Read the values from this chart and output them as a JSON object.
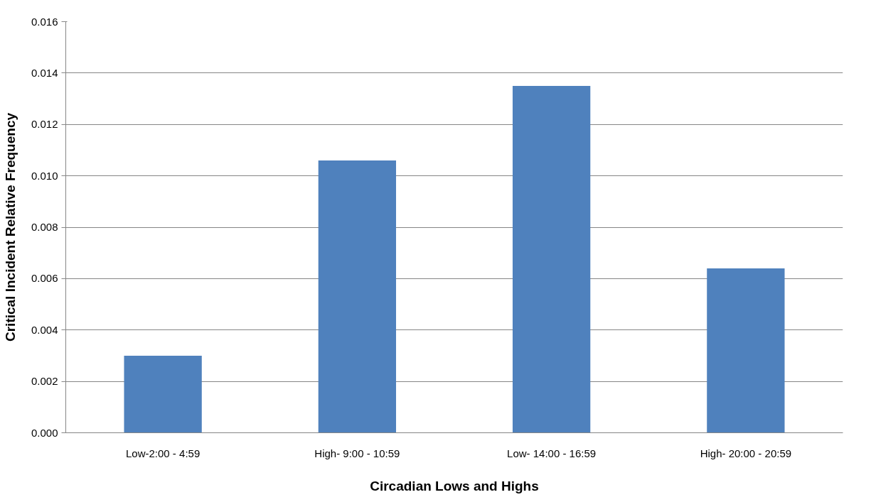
{
  "chart_data": {
    "type": "bar",
    "xlabel": "Circadian Lows and Highs",
    "ylabel": "Critical Incident Relative Frequency",
    "categories": [
      "Low-2:00 - 4:59",
      "High- 9:00 - 10:59",
      "Low- 14:00 - 16:59",
      "High- 20:00 - 20:59"
    ],
    "values": [
      0.003,
      0.0106,
      0.0135,
      0.0064
    ],
    "color": "#4f81bd",
    "ylim": [
      0,
      0.016
    ],
    "yticks": [
      {
        "value": 0,
        "label": "0.000"
      },
      {
        "value": 0.002,
        "label": "0.002"
      },
      {
        "value": 0.004,
        "label": "0.004"
      },
      {
        "value": 0.006,
        "label": "0.006"
      },
      {
        "value": 0.008,
        "label": "0.008"
      },
      {
        "value": 0.01,
        "label": "0.010"
      },
      {
        "value": 0.012,
        "label": "0.012"
      },
      {
        "value": 0.014,
        "label": "0.014"
      },
      {
        "value": 0.016,
        "label": "0.016"
      }
    ],
    "grid": "y"
  }
}
